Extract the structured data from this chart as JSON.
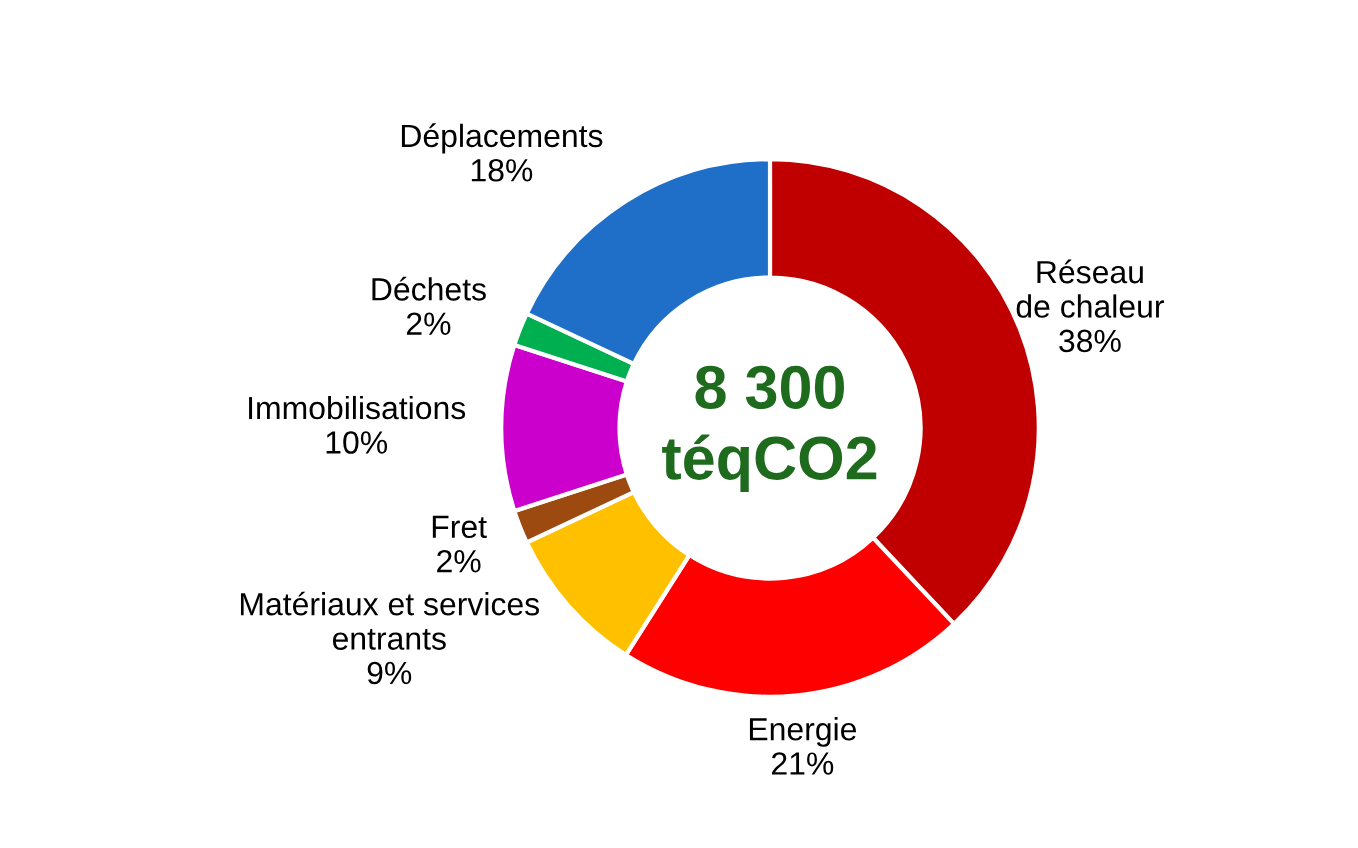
{
  "chart_data": {
    "type": "donut",
    "categories": [
      "Réseau\nde chaleur",
      "Energie",
      "Matériaux et services\nentrants",
      "Fret",
      "Immobilisations",
      "Déchets",
      "Déplacements"
    ],
    "values": [
      38,
      21,
      9,
      2,
      10,
      2,
      18
    ],
    "value_labels": [
      "38%",
      "21%",
      "9%",
      "2%",
      "10%",
      "2%",
      "18%"
    ],
    "colors": [
      "#c00000",
      "#ff0000",
      "#ffc000",
      "#9c4a10",
      "#cc00cc",
      "#00b050",
      "#1f6fc8"
    ],
    "annotations": [
      "8 300\ntéqCO2"
    ]
  }
}
